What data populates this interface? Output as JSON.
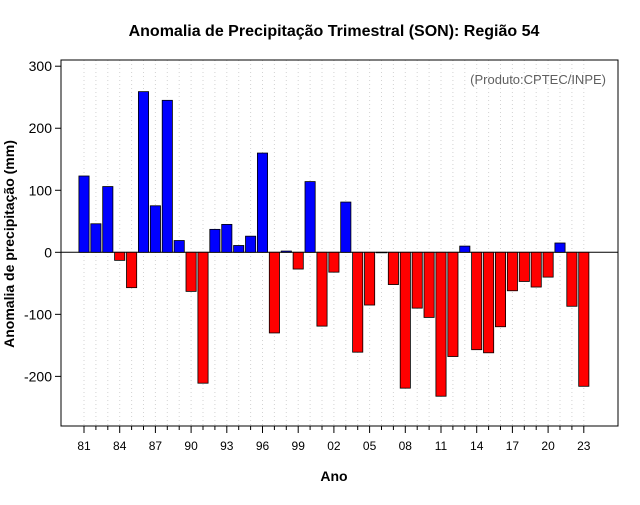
{
  "chart_data": {
    "type": "bar",
    "title": "Anomalia de Precipitação Trimestral (SON): Região 54",
    "annotation": "(Produto:CPTEC/INPE)",
    "xlabel": "Ano",
    "ylabel": "Anomalia de precipitação (mm)",
    "ylim": [
      -280,
      310
    ],
    "yticks": [
      -200,
      -100,
      0,
      100,
      200,
      300
    ],
    "ytick_labels": [
      "-200",
      "-100",
      "0",
      "100",
      "200",
      "300"
    ],
    "xtick_labels": [
      "81",
      "84",
      "87",
      "90",
      "93",
      "96",
      "99",
      "02",
      "05",
      "08",
      "11",
      "14",
      "17",
      "20",
      "23"
    ],
    "xtick_years": [
      1981,
      1984,
      1987,
      1990,
      1993,
      1996,
      1999,
      2002,
      2005,
      2008,
      2011,
      2014,
      2017,
      2020,
      2023
    ],
    "first_year": 1981,
    "last_year": 2023,
    "grid": true,
    "colors": {
      "positive": "#0000ff",
      "negative": "#ff0000",
      "grid": "#d3d3d3",
      "axis": "#000000",
      "annotation": "#606060"
    },
    "years": [
      1981,
      1982,
      1983,
      1984,
      1985,
      1986,
      1987,
      1988,
      1989,
      1990,
      1991,
      1992,
      1993,
      1994,
      1995,
      1996,
      1997,
      1998,
      1999,
      2000,
      2001,
      2002,
      2003,
      2004,
      2005,
      2006,
      2007,
      2008,
      2009,
      2010,
      2011,
      2012,
      2013,
      2014,
      2015,
      2016,
      2017,
      2018,
      2019,
      2020,
      2021,
      2022,
      2023
    ],
    "values": [
      123,
      46,
      106,
      -13,
      -57,
      259,
      75,
      245,
      19,
      -63,
      -211,
      37,
      45,
      11,
      26,
      160,
      -130,
      2,
      -27,
      114,
      -119,
      -32,
      81,
      -161,
      -85,
      0,
      -52,
      -219,
      -90,
      -105,
      -232,
      -168,
      10,
      -157,
      -162,
      -120,
      -62,
      -47,
      -56,
      -40,
      15,
      -87,
      -216
    ]
  }
}
